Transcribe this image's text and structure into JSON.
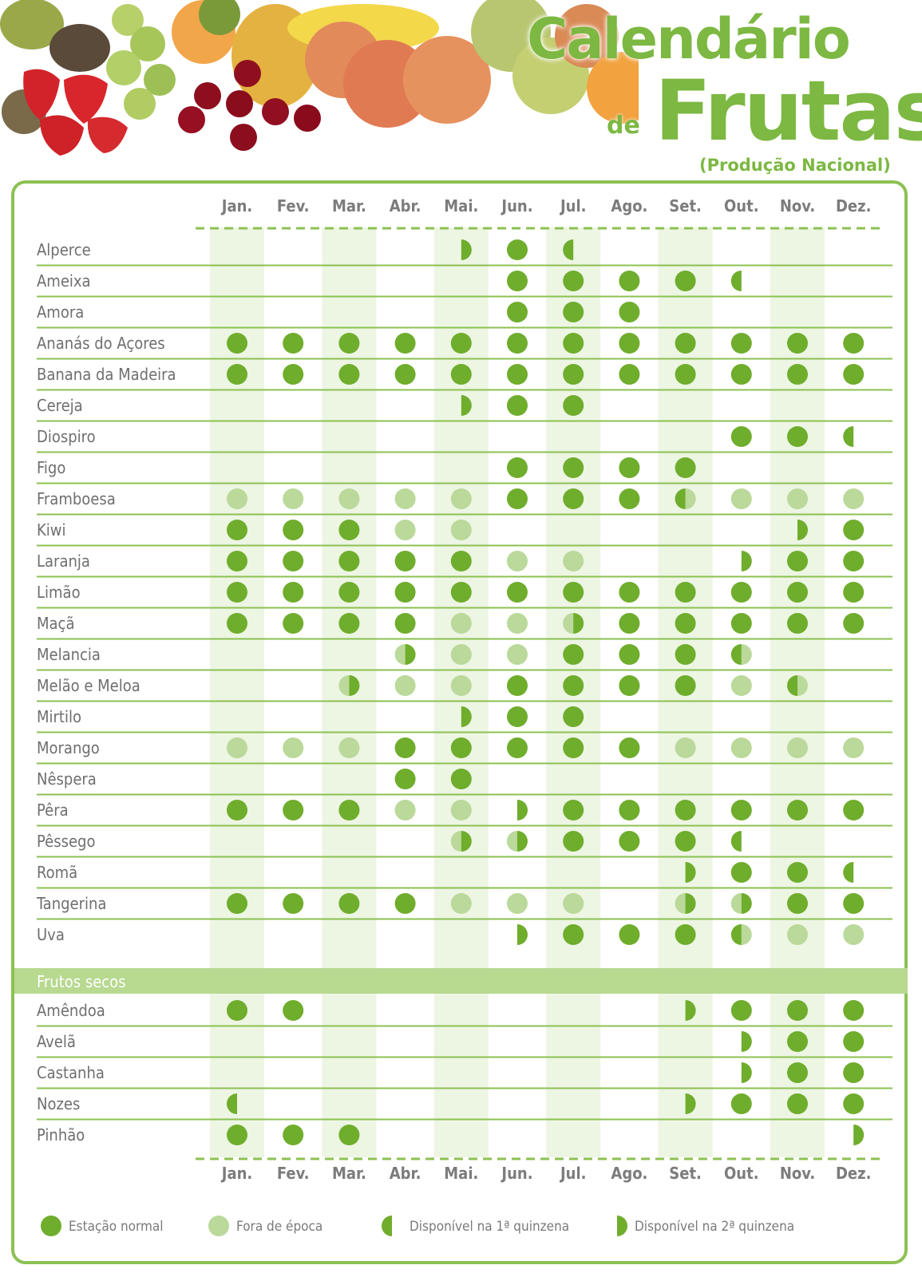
{
  "header": {
    "title_line1": "Calendário",
    "title_de": "de",
    "title_line2": "Frutas",
    "subtitle": "(Produção Nacional)"
  },
  "colors": {
    "green": "#6fad2c",
    "light_green": "#bad99a",
    "column_band": "#edf5e3",
    "rule": "#8cc152",
    "section_bar": "#b7d990"
  },
  "chart_data": {
    "type": "table",
    "months": [
      "Jan.",
      "Fev.",
      "Mar.",
      "Abr.",
      "Mai.",
      "Jun.",
      "Jul.",
      "Ago.",
      "Set.",
      "Out.",
      "Nov.",
      "Dez."
    ],
    "status_codes": {
      "N": "Estação normal",
      "F": "Fora de época",
      "1": "Disponível na 1ª quinzena",
      "2": "Disponível na 2ª quinzena",
      "F1": "Disponível na 1ª quinzena; fora de época no resto do mês",
      "F2": "Disponível na 2ª quinzena; fora de época no resto do mês"
    },
    "fruits": [
      {
        "name": "Alperce",
        "months": [
          "",
          "",
          "",
          "",
          "2",
          "N",
          "1",
          "",
          "",
          "",
          "",
          ""
        ]
      },
      {
        "name": "Ameixa",
        "months": [
          "",
          "",
          "",
          "",
          "",
          "N",
          "N",
          "N",
          "N",
          "1",
          "",
          ""
        ]
      },
      {
        "name": "Amora",
        "months": [
          "",
          "",
          "",
          "",
          "",
          "N",
          "N",
          "N",
          "",
          "",
          "",
          ""
        ]
      },
      {
        "name": "Ananás do Açores",
        "months": [
          "N",
          "N",
          "N",
          "N",
          "N",
          "N",
          "N",
          "N",
          "N",
          "N",
          "N",
          "N"
        ]
      },
      {
        "name": "Banana da Madeira",
        "months": [
          "N",
          "N",
          "N",
          "N",
          "N",
          "N",
          "N",
          "N",
          "N",
          "N",
          "N",
          "N"
        ]
      },
      {
        "name": "Cereja",
        "months": [
          "",
          "",
          "",
          "",
          "2",
          "N",
          "N",
          "",
          "",
          "",
          "",
          ""
        ]
      },
      {
        "name": "Diospiro",
        "months": [
          "",
          "",
          "",
          "",
          "",
          "",
          "",
          "",
          "",
          "N",
          "N",
          "1"
        ]
      },
      {
        "name": "Figo",
        "months": [
          "",
          "",
          "",
          "",
          "",
          "N",
          "N",
          "N",
          "N",
          "",
          "",
          ""
        ]
      },
      {
        "name": "Framboesa",
        "months": [
          "F",
          "F",
          "F",
          "F",
          "F",
          "N",
          "N",
          "N",
          "F1",
          "F",
          "F",
          "F"
        ]
      },
      {
        "name": "Kiwi",
        "months": [
          "N",
          "N",
          "N",
          "F",
          "F",
          "",
          "",
          "",
          "",
          "",
          "2",
          "N"
        ]
      },
      {
        "name": "Laranja",
        "months": [
          "N",
          "N",
          "N",
          "N",
          "N",
          "F",
          "F",
          "",
          "",
          "2",
          "N",
          "N"
        ]
      },
      {
        "name": "Limão",
        "months": [
          "N",
          "N",
          "N",
          "N",
          "N",
          "N",
          "N",
          "N",
          "N",
          "N",
          "N",
          "N"
        ]
      },
      {
        "name": "Maçã",
        "months": [
          "N",
          "N",
          "N",
          "N",
          "F",
          "F",
          "F2",
          "N",
          "N",
          "N",
          "N",
          "N"
        ]
      },
      {
        "name": "Melancia",
        "months": [
          "",
          "",
          "",
          "F2",
          "F",
          "F",
          "N",
          "N",
          "N",
          "F1",
          "",
          ""
        ]
      },
      {
        "name": "Melão e Meloa",
        "months": [
          "",
          "",
          "F2",
          "F",
          "F",
          "N",
          "N",
          "N",
          "N",
          "F",
          "F1",
          ""
        ]
      },
      {
        "name": "Mirtilo",
        "months": [
          "",
          "",
          "",
          "",
          "2",
          "N",
          "N",
          "",
          "",
          "",
          "",
          ""
        ]
      },
      {
        "name": "Morango",
        "months": [
          "F",
          "F",
          "F",
          "N",
          "N",
          "N",
          "N",
          "N",
          "F",
          "F",
          "F",
          "F"
        ]
      },
      {
        "name": "Nêspera",
        "months": [
          "",
          "",
          "",
          "N",
          "N",
          "",
          "",
          "",
          "",
          "",
          "",
          ""
        ]
      },
      {
        "name": "Pêra",
        "months": [
          "N",
          "N",
          "N",
          "F",
          "F",
          "2",
          "N",
          "N",
          "N",
          "N",
          "N",
          "N"
        ]
      },
      {
        "name": "Pêssego",
        "months": [
          "",
          "",
          "",
          "",
          "F2",
          "F2",
          "N",
          "N",
          "N",
          "1",
          "",
          ""
        ]
      },
      {
        "name": "Romã",
        "months": [
          "",
          "",
          "",
          "",
          "",
          "",
          "",
          "",
          "2",
          "N",
          "N",
          "1"
        ]
      },
      {
        "name": "Tangerina",
        "months": [
          "N",
          "N",
          "N",
          "N",
          "F",
          "F",
          "F",
          "",
          "F2",
          "F2",
          "N",
          "N"
        ]
      },
      {
        "name": "Uva",
        "months": [
          "",
          "",
          "",
          "",
          "",
          "2",
          "N",
          "N",
          "N",
          "F1",
          "F",
          "F"
        ]
      }
    ],
    "section_title": "Frutos secos",
    "nuts": [
      {
        "name": "Amêndoa",
        "months": [
          "N",
          "N",
          "",
          "",
          "",
          "",
          "",
          "",
          "2",
          "N",
          "N",
          "N"
        ]
      },
      {
        "name": "Avelã",
        "months": [
          "",
          "",
          "",
          "",
          "",
          "",
          "",
          "",
          "",
          "2",
          "N",
          "N"
        ]
      },
      {
        "name": "Castanha",
        "months": [
          "",
          "",
          "",
          "",
          "",
          "",
          "",
          "",
          "",
          "2",
          "N",
          "N"
        ]
      },
      {
        "name": "Nozes",
        "months": [
          "1",
          "",
          "",
          "",
          "",
          "",
          "",
          "",
          "2",
          "N",
          "N",
          "N"
        ]
      },
      {
        "name": "Pinhão",
        "months": [
          "N",
          "N",
          "N",
          "",
          "",
          "",
          "",
          "",
          "",
          "",
          "",
          "2"
        ]
      }
    ],
    "legend": [
      {
        "code": "N",
        "label": "Estação normal"
      },
      {
        "code": "F",
        "label": "Fora de época"
      },
      {
        "code": "1",
        "label": "Disponível na 1ª quinzena"
      },
      {
        "code": "2",
        "label": "Disponível na 2ª quinzena"
      }
    ]
  }
}
